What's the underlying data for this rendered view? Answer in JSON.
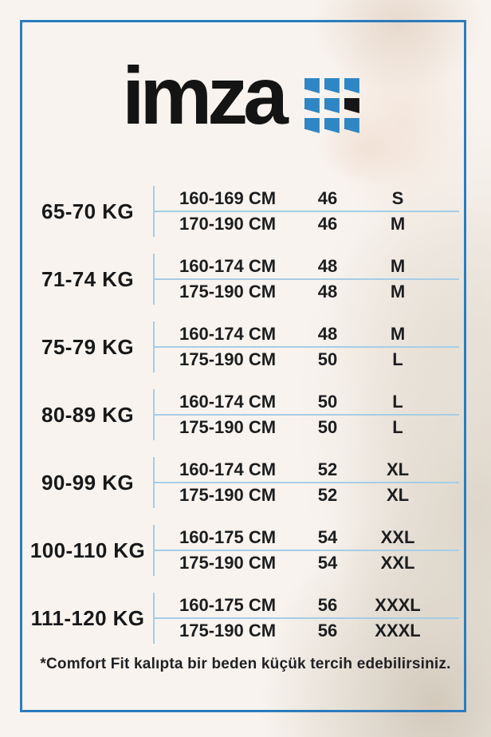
{
  "logo": {
    "text": "imza",
    "dots": {
      "rows": 3,
      "cols": 3,
      "blue": "#2f86c4",
      "dark": "#161616",
      "dark_position": "middle-right"
    }
  },
  "colors": {
    "background": "#f8f3ee",
    "frame_blue": "#2b7cbd",
    "divider_blue": "#a6cde6",
    "text": "#1c1d1f"
  },
  "footnote": "*Comfort Fit kalıpta bir beden küçük tercih edebilirsiniz.",
  "chart_data": {
    "type": "table",
    "columns": [
      "weight_kg",
      "height_cm",
      "size_number",
      "size_letter"
    ],
    "groups": [
      {
        "weight": "65-70 KG",
        "rows": [
          {
            "height": "160-169 CM",
            "size": "46",
            "letter": "S"
          },
          {
            "height": "170-190 CM",
            "size": "46",
            "letter": "M"
          }
        ]
      },
      {
        "weight": "71-74 KG",
        "rows": [
          {
            "height": "160-174 CM",
            "size": "48",
            "letter": "M"
          },
          {
            "height": "175-190 CM",
            "size": "48",
            "letter": "M"
          }
        ]
      },
      {
        "weight": "75-79 KG",
        "rows": [
          {
            "height": "160-174 CM",
            "size": "48",
            "letter": "M"
          },
          {
            "height": "175-190 CM",
            "size": "50",
            "letter": "L"
          }
        ]
      },
      {
        "weight": "80-89 KG",
        "rows": [
          {
            "height": "160-174 CM",
            "size": "50",
            "letter": "L"
          },
          {
            "height": "175-190 CM",
            "size": "50",
            "letter": "L"
          }
        ]
      },
      {
        "weight": "90-99 KG",
        "rows": [
          {
            "height": "160-174 CM",
            "size": "52",
            "letter": "XL"
          },
          {
            "height": "175-190 CM",
            "size": "52",
            "letter": "XL"
          }
        ]
      },
      {
        "weight": "100-110 KG",
        "rows": [
          {
            "height": "160-175 CM",
            "size": "54",
            "letter": "XXL"
          },
          {
            "height": "175-190 CM",
            "size": "54",
            "letter": "XXL"
          }
        ]
      },
      {
        "weight": "111-120 KG",
        "rows": [
          {
            "height": "160-175 CM",
            "size": "56",
            "letter": "XXXL"
          },
          {
            "height": "175-190 CM",
            "size": "56",
            "letter": "XXXL"
          }
        ]
      }
    ],
    "footnote": "*Comfort Fit kalıpta bir beden küçük tercih edebilirsiniz."
  }
}
